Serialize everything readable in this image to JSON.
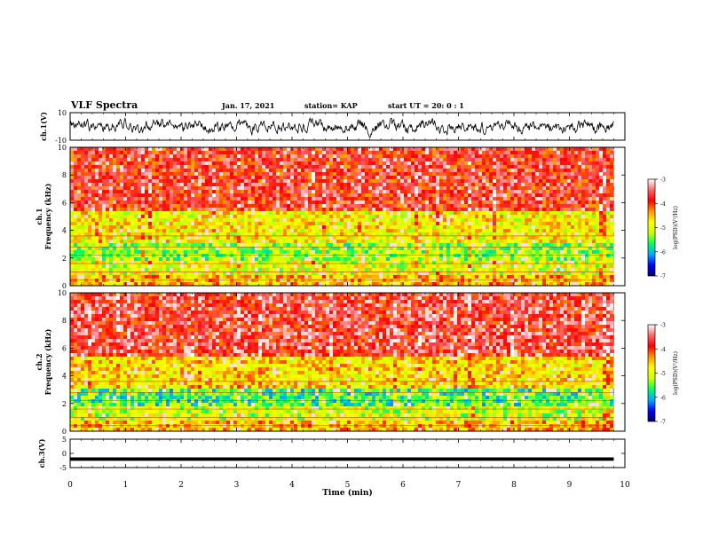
{
  "header": {
    "title": "VLF Spectra",
    "date": "Jan. 17, 2021",
    "station": "station= KAP",
    "start": "start  UT  =   20: 0  : 1"
  },
  "chart_data": [
    {
      "type": "line",
      "panel": "ch1-waveform",
      "ylabel": "ch.1(V)",
      "ylim": [
        -10,
        10
      ],
      "yticks": [
        "10",
        "-10"
      ],
      "xlim": [
        0,
        10
      ],
      "y_summary": {
        "mean": 0,
        "min": -8,
        "max": 8,
        "trace_end_min": 9.8
      }
    },
    {
      "type": "heatmap",
      "panel": "ch1-spectrogram",
      "ylabel": "ch.1\nFrequency  (kHz)",
      "ylabel_line1": "ch.1",
      "ylabel_line2": "Frequency  (kHz)",
      "ylim": [
        0,
        10
      ],
      "yticks": [
        "0",
        "2",
        "4",
        "6",
        "8",
        "10"
      ],
      "xlim": [
        0,
        10
      ],
      "data_end_min": 9.8,
      "dominant_bands_khz": [
        {
          "from": 0,
          "to": 0.8,
          "log_psd": -4.5
        },
        {
          "from": 0.8,
          "to": 2.0,
          "log_psd": -5.0
        },
        {
          "from": 2.0,
          "to": 3.2,
          "log_psd": -5.3
        },
        {
          "from": 3.2,
          "to": 5.5,
          "log_psd": -4.8
        },
        {
          "from": 5.5,
          "to": 10,
          "log_psd": -3.8
        }
      ],
      "colorbar": {
        "label": "log(PSD)(V²/Hz)",
        "range": [
          -7,
          -3
        ],
        "ticks": [
          "-3",
          "-4",
          "-5",
          "-6",
          "-7"
        ],
        "colors": [
          "#000066",
          "#0000ff",
          "#00aaff",
          "#00ff66",
          "#ccff00",
          "#ffff00",
          "#ff9900",
          "#ff0000",
          "#ff6666",
          "#ffffff"
        ]
      }
    },
    {
      "type": "heatmap",
      "panel": "ch2-spectrogram",
      "ylabel": "ch.2\nFrequency  (kHz)",
      "ylabel_line1": "ch.2",
      "ylabel_line2": "Frequency  (kHz)",
      "ylim": [
        0,
        10
      ],
      "yticks": [
        "0",
        "2",
        "4",
        "6",
        "8",
        "10"
      ],
      "xlim": [
        0,
        10
      ],
      "data_end_min": 9.8,
      "dominant_bands_khz": [
        {
          "from": 0,
          "to": 0.8,
          "log_psd": -4.6
        },
        {
          "from": 0.8,
          "to": 2.0,
          "log_psd": -5.1
        },
        {
          "from": 2.0,
          "to": 3.2,
          "log_psd": -5.6
        },
        {
          "from": 3.2,
          "to": 5.5,
          "log_psd": -4.7
        },
        {
          "from": 5.5,
          "to": 10,
          "log_psd": -3.7
        }
      ],
      "colorbar": {
        "label": "log(PSD)(V²/Hz)",
        "range": [
          -7,
          -3
        ],
        "ticks": [
          "-3",
          "-4",
          "-5",
          "-6",
          "-7"
        ],
        "colors": [
          "#000066",
          "#0000ff",
          "#00aaff",
          "#00ff66",
          "#ccff00",
          "#ffff00",
          "#ff9900",
          "#ff0000",
          "#ff6666",
          "#ffffff"
        ]
      }
    },
    {
      "type": "line",
      "panel": "ch3-signal",
      "ylabel": "ch.3(V)",
      "ylim": [
        -5,
        5
      ],
      "yticks": [
        "5",
        "0",
        "-5"
      ],
      "xlim": [
        0,
        10
      ],
      "y_summary": {
        "level": -2,
        "band_low": -2.6,
        "band_high": -1.4,
        "trace_end_min": 9.8
      }
    }
  ],
  "x_axis": {
    "label": "Time  (min)",
    "ticks": [
      "0",
      "1",
      "2",
      "3",
      "4",
      "5",
      "6",
      "7",
      "8",
      "9",
      "10"
    ]
  }
}
